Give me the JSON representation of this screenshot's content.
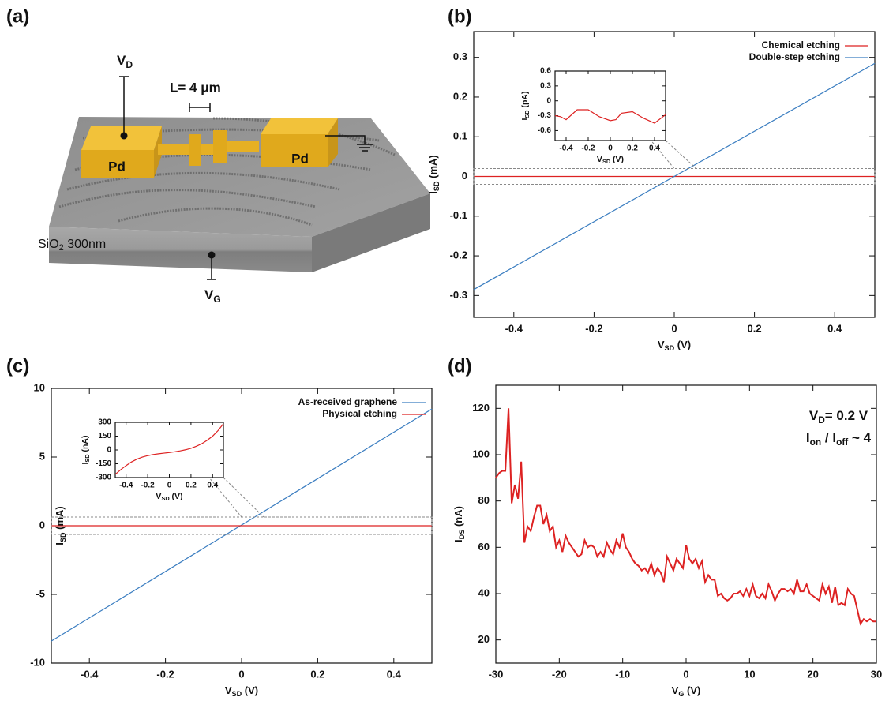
{
  "diagram": {
    "panel_label": "(a)",
    "vd": [
      "V",
      "D"
    ],
    "length": "L= 4 μm",
    "pd": [
      "Pd",
      "Pd"
    ],
    "substrate": [
      "SiO",
      "2",
      " 300nm"
    ],
    "vg": [
      "V",
      "G"
    ]
  },
  "chart_data": [
    {
      "type": "line",
      "panel_label": "(b)",
      "xlabel": [
        "V",
        "SD",
        " (V)"
      ],
      "ylabel": [
        "I",
        "SD",
        " (mA)"
      ],
      "x": [
        -0.5,
        0.5
      ],
      "series": [
        {
          "name": "Chemical etching",
          "color": "#dd2222",
          "values": [
            0,
            0
          ]
        },
        {
          "name": "Double-step etching",
          "color": "#3a7dc0",
          "values": [
            -0.285,
            0.285
          ]
        }
      ],
      "xlim": [
        -0.5,
        0.5
      ],
      "ylim": [
        -0.355,
        0.365
      ],
      "xticks": [
        -0.4,
        -0.2,
        0,
        0.2,
        0.4
      ],
      "yticks": [
        -0.3,
        -0.2,
        -0.1,
        0,
        0.1,
        0.2,
        0.3
      ],
      "legend": "upper right",
      "inset": {
        "xlabel": [
          "V",
          "SD",
          " (V)"
        ],
        "ylabel": [
          "I",
          "SD",
          " (pA)"
        ],
        "x": [
          -0.5,
          -0.45,
          -0.4,
          -0.3,
          -0.2,
          -0.1,
          0,
          0.05,
          0.1,
          0.2,
          0.3,
          0.4,
          0.5
        ],
        "series": [
          {
            "color": "#dd2222",
            "values": [
              -0.3,
              -0.32,
              -0.38,
              -0.18,
              -0.18,
              -0.32,
              -0.4,
              -0.38,
              -0.25,
              -0.22,
              -0.35,
              -0.45,
              -0.28
            ]
          }
        ],
        "xlim": [
          -0.5,
          0.5
        ],
        "ylim": [
          -0.8,
          0.6
        ],
        "xticks": [
          -0.4,
          -0.2,
          0,
          0.2,
          0.4
        ],
        "yticks": [
          -0.6,
          -0.3,
          0,
          0.3,
          0.6
        ]
      }
    },
    {
      "type": "line",
      "panel_label": "(c)",
      "xlabel": [
        "V",
        "SD",
        " (V)"
      ],
      "ylabel": [
        "I",
        "SD",
        " (mA)"
      ],
      "x": [
        -0.5,
        0.5
      ],
      "series": [
        {
          "name": "As-received graphene",
          "color": "#3a7dc0",
          "values": [
            -8.4,
            8.5
          ]
        },
        {
          "name": "Physical etching",
          "color": "#dd2222",
          "values": [
            0,
            0
          ]
        }
      ],
      "xlim": [
        -0.5,
        0.5
      ],
      "ylim": [
        -10,
        10
      ],
      "xticks": [
        -0.4,
        -0.2,
        0,
        0.2,
        0.4
      ],
      "yticks": [
        -10,
        -5,
        0,
        5,
        10
      ],
      "legend": "upper right",
      "inset": {
        "xlabel": [
          "V",
          "SD",
          " (V)"
        ],
        "ylabel": [
          "I",
          "SD",
          " (nA)"
        ],
        "x": [
          -0.5,
          -0.45,
          -0.4,
          -0.35,
          -0.3,
          -0.25,
          -0.2,
          -0.15,
          -0.1,
          -0.05,
          0,
          0.05,
          0.1,
          0.15,
          0.2,
          0.25,
          0.3,
          0.35,
          0.4,
          0.45,
          0.5
        ],
        "series": [
          {
            "color": "#dd2222",
            "values": [
              -265,
              -215,
              -170,
              -130,
              -100,
              -78,
              -62,
              -50,
              -42,
              -35,
              -28,
              -20,
              -10,
              2,
              18,
              40,
              68,
              105,
              150,
              210,
              285
            ]
          }
        ],
        "xlim": [
          -0.5,
          0.5
        ],
        "ylim": [
          -300,
          300
        ],
        "xticks": [
          -0.4,
          -0.2,
          0,
          0.2,
          0.4
        ],
        "yticks": [
          -300,
          -150,
          0,
          150,
          300
        ]
      }
    },
    {
      "type": "line",
      "panel_label": "(d)",
      "xlabel": [
        "V",
        "G",
        " (V)"
      ],
      "ylabel": [
        "I",
        "DS",
        " (nA)"
      ],
      "annotations": [
        [
          "V",
          "D",
          "= 0.2 V"
        ],
        [
          "I",
          "on",
          " / I",
          "off",
          " ~ 4"
        ]
      ],
      "x": [
        -30,
        -29.5,
        -29,
        -28.5,
        -28,
        -27.5,
        -27,
        -26.5,
        -26,
        -25.5,
        -25,
        -24.5,
        -24,
        -23.5,
        -23,
        -22.5,
        -22,
        -21.5,
        -21,
        -20.5,
        -20,
        -19.5,
        -19,
        -18.5,
        -18,
        -17.5,
        -17,
        -16.5,
        -16,
        -15.5,
        -15,
        -14.5,
        -14,
        -13.5,
        -13,
        -12.5,
        -12,
        -11.5,
        -11,
        -10.5,
        -10,
        -9.5,
        -9,
        -8.5,
        -8,
        -7.5,
        -7,
        -6.5,
        -6,
        -5.5,
        -5,
        -4.5,
        -4,
        -3.5,
        -3,
        -2.5,
        -2,
        -1.5,
        -1,
        -0.5,
        0,
        0.5,
        1,
        1.5,
        2,
        2.5,
        3,
        3.5,
        4,
        4.5,
        5,
        5.5,
        6,
        6.5,
        7,
        7.5,
        8,
        8.5,
        9,
        9.5,
        10,
        10.5,
        11,
        11.5,
        12,
        12.5,
        13,
        13.5,
        14,
        14.5,
        15,
        15.5,
        16,
        16.5,
        17,
        17.5,
        18,
        18.5,
        19,
        19.5,
        20,
        20.5,
        21,
        21.5,
        22,
        22.5,
        23,
        23.5,
        24,
        24.5,
        25,
        25.5,
        26,
        26.5,
        27,
        27.5,
        28,
        28.5,
        29,
        29.5,
        30
      ],
      "series": [
        {
          "color": "#dd2222",
          "values": [
            90,
            92,
            93,
            93,
            120,
            79,
            87,
            81,
            97,
            62,
            69,
            67,
            73,
            78,
            78,
            70,
            74,
            67,
            69,
            60,
            63,
            58,
            65,
            62,
            60,
            58,
            56,
            57,
            63,
            60,
            61,
            60,
            56,
            58,
            56,
            62,
            59,
            57,
            63,
            60,
            66,
            60,
            58,
            55,
            53,
            52,
            50,
            51,
            49,
            53,
            48,
            51,
            49,
            45,
            56,
            53,
            50,
            55,
            53,
            51,
            61,
            55,
            53,
            55,
            51,
            54,
            45,
            48,
            46,
            46,
            39,
            40,
            38,
            37,
            38,
            40,
            40,
            41,
            39,
            42,
            39,
            44,
            39,
            38,
            40,
            38,
            44,
            41,
            37,
            40,
            42,
            42,
            41,
            42,
            40,
            46,
            41,
            41,
            44,
            40,
            39,
            38,
            37,
            44,
            40,
            43,
            36,
            43,
            35,
            36,
            35,
            42,
            40,
            39,
            33,
            27,
            29,
            28,
            29,
            28,
            28
          ]
        }
      ],
      "xlim": [
        -30,
        30
      ],
      "ylim": [
        10,
        130
      ],
      "xticks": [
        -30,
        -20,
        -10,
        0,
        10,
        20,
        30
      ],
      "yticks": [
        20,
        40,
        60,
        80,
        100,
        120
      ]
    }
  ]
}
